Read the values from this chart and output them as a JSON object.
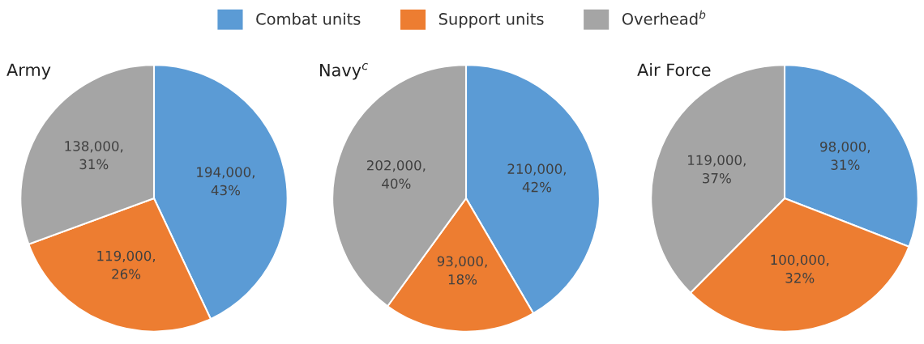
{
  "chart_data": [
    {
      "type": "pie",
      "title": "Army",
      "categories": [
        "Combat units",
        "Support units",
        "Overhead$^{b}$"
      ],
      "values": [
        194000,
        119000,
        138000
      ],
      "colors": [
        "#5b9bd5",
        "#ed7d31",
        "#a5a5a5"
      ],
      "value_labels": [
        "194,000,\n43%",
        "119,000,\n26%",
        "138,000,\n31%"
      ],
      "legend": "top"
    },
    {
      "type": "pie",
      "title": "Navy$^{c}$",
      "categories": [
        null,
        null,
        null
      ],
      "values": [
        210000,
        93000,
        202000
      ],
      "colors": [
        "#5b9bd5",
        "#ed7d31",
        "#a5a5a5"
      ],
      "value_labels": [
        "210,000,\n42%",
        "93,000,\n18%",
        "202,000,\n40%"
      ]
    },
    {
      "type": "pie",
      "title": "Air Force",
      "categories": [
        null,
        null,
        null
      ],
      "values": [
        98000,
        100000,
        119000
      ],
      "colors": [
        "#5b9bd5",
        "#ed7d31",
        "#a5a5a5"
      ],
      "value_labels": [
        "98,000,\n31%",
        "100,000,\n32%",
        "119,000,\n37%"
      ]
    }
  ]
}
